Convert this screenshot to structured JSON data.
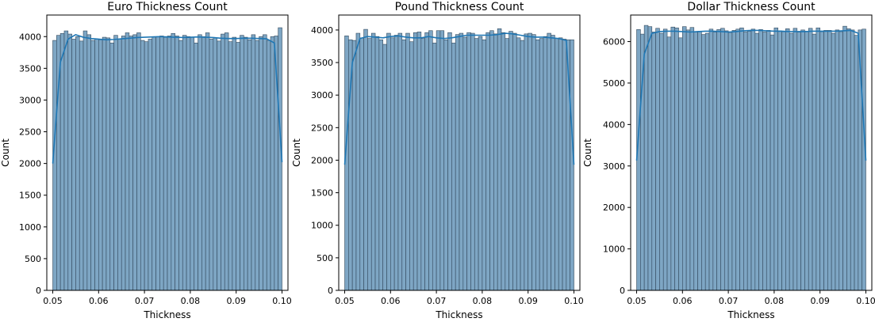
{
  "chart_data": [
    {
      "type": "bar",
      "title": "Euro Thickness Count",
      "xlabel": "Thickness",
      "ylabel": "Count",
      "xlim": [
        0.0487,
        0.1013
      ],
      "ylim": [
        0,
        4340
      ],
      "bin_range": [
        0.05,
        0.1
      ],
      "xticks": [
        0.05,
        0.06,
        0.07,
        0.08,
        0.09,
        0.1
      ],
      "xtick_labels": [
        "0.05",
        "0.06",
        "0.07",
        "0.08",
        "0.09",
        "0.10"
      ],
      "yticks": [
        0,
        500,
        1000,
        1500,
        2000,
        2500,
        3000,
        3500,
        4000
      ],
      "ytick_labels": [
        "0",
        "500",
        "1000",
        "1500",
        "2000",
        "2500",
        "3000",
        "3500",
        "4000"
      ],
      "values": [
        3940,
        4020,
        4050,
        4090,
        4040,
        3960,
        4000,
        3930,
        4090,
        4030,
        3940,
        3960,
        3950,
        3990,
        3980,
        3900,
        4020,
        3960,
        4010,
        4060,
        4010,
        4030,
        4060,
        3940,
        3920,
        3960,
        4000,
        4000,
        4010,
        3990,
        4010,
        4050,
        4010,
        3940,
        4020,
        4000,
        3990,
        3900,
        4030,
        4000,
        4060,
        3960,
        3980,
        3930,
        4040,
        4060,
        3920,
        3990,
        3910,
        4020,
        3990,
        3950,
        4030,
        3940,
        4000,
        4030,
        3940,
        4000,
        4010,
        4140
      ],
      "kde": [
        2000,
        3600,
        3960,
        4030,
        3990,
        3970,
        3960,
        3950,
        3955,
        3965,
        3975,
        3985,
        3990,
        3995,
        4000,
        3995,
        3990,
        3985,
        3990,
        3995,
        3990,
        3985,
        3975,
        3970,
        3970,
        3975,
        3975,
        3970,
        3965,
        3900,
        2020
      ],
      "colors": {
        "bar_fill": "#7ea6c4",
        "bar_edge": "#33495d",
        "kde": "#1f77b4"
      }
    },
    {
      "type": "bar",
      "title": "Pound Thickness Count",
      "xlabel": "Thickness",
      "ylabel": "Count",
      "xlim": [
        0.0487,
        0.1013
      ],
      "ylim": [
        0,
        4230
      ],
      "bin_range": [
        0.05,
        0.1
      ],
      "xticks": [
        0.05,
        0.06,
        0.07,
        0.08,
        0.09,
        0.1
      ],
      "xtick_labels": [
        "0.05",
        "0.06",
        "0.07",
        "0.08",
        "0.09",
        "0.10"
      ],
      "yticks": [
        0,
        500,
        1000,
        1500,
        2000,
        2500,
        3000,
        3500,
        4000
      ],
      "ytick_labels": [
        "0",
        "500",
        "1000",
        "1500",
        "2000",
        "2500",
        "3000",
        "3500",
        "4000"
      ],
      "values": [
        3910,
        3850,
        3840,
        3950,
        3880,
        4010,
        3870,
        3950,
        3900,
        3850,
        3780,
        3950,
        3880,
        3920,
        3950,
        3850,
        3950,
        3820,
        3960,
        3970,
        3870,
        3960,
        3990,
        3800,
        3990,
        3990,
        3850,
        3960,
        3800,
        3930,
        3950,
        3890,
        3960,
        3950,
        3870,
        3900,
        3850,
        3960,
        3990,
        3940,
        4020,
        3960,
        3870,
        3980,
        3950,
        3880,
        3840,
        3940,
        3950,
        3930,
        3850,
        3870,
        3900,
        3950,
        3920,
        3870,
        3880,
        3860,
        3850,
        3850
      ],
      "kde": [
        1930,
        3500,
        3870,
        3900,
        3890,
        3880,
        3900,
        3910,
        3890,
        3880,
        3880,
        3900,
        3880,
        3870,
        3880,
        3900,
        3920,
        3920,
        3920,
        3920,
        3930,
        3950,
        3940,
        3920,
        3900,
        3890,
        3890,
        3880,
        3870,
        3840,
        1930
      ],
      "colors": {
        "bar_fill": "#7ea6c4",
        "bar_edge": "#33495d",
        "kde": "#1f77b4"
      }
    },
    {
      "type": "bar",
      "title": "Dollar Thickness Count",
      "xlabel": "Thickness",
      "ylabel": "Count",
      "xlim": [
        0.0487,
        0.1013
      ],
      "ylim": [
        0,
        6640
      ],
      "bin_range": [
        0.05,
        0.1
      ],
      "xticks": [
        0.05,
        0.06,
        0.07,
        0.08,
        0.09,
        0.1
      ],
      "xtick_labels": [
        "0.05",
        "0.06",
        "0.07",
        "0.08",
        "0.09",
        "0.10"
      ],
      "yticks": [
        0,
        1000,
        2000,
        3000,
        4000,
        5000,
        6000
      ],
      "ytick_labels": [
        "0",
        "1000",
        "2000",
        "3000",
        "4000",
        "5000",
        "6000"
      ],
      "values": [
        6290,
        6180,
        6390,
        6360,
        6230,
        6320,
        6200,
        6300,
        6110,
        6350,
        6330,
        6090,
        6360,
        6280,
        6340,
        6230,
        6250,
        6170,
        6200,
        6300,
        6230,
        6290,
        6320,
        6260,
        6220,
        6270,
        6300,
        6330,
        6230,
        6250,
        6300,
        6200,
        6290,
        6230,
        6270,
        6160,
        6330,
        6260,
        6240,
        6310,
        6200,
        6320,
        6230,
        6280,
        6250,
        6320,
        6180,
        6330,
        6240,
        6270,
        6270,
        6200,
        6280,
        6240,
        6370,
        6310,
        6280,
        6150,
        6280,
        6300
      ],
      "kde": [
        3130,
        5700,
        6200,
        6240,
        6250,
        6250,
        6240,
        6230,
        6240,
        6250,
        6250,
        6240,
        6230,
        6240,
        6260,
        6270,
        6270,
        6260,
        6250,
        6250,
        6240,
        6240,
        6240,
        6250,
        6250,
        6250,
        6250,
        6260,
        6270,
        6200,
        3130
      ],
      "colors": {
        "bar_fill": "#7ea6c4",
        "bar_edge": "#33495d",
        "kde": "#1f77b4"
      }
    }
  ]
}
